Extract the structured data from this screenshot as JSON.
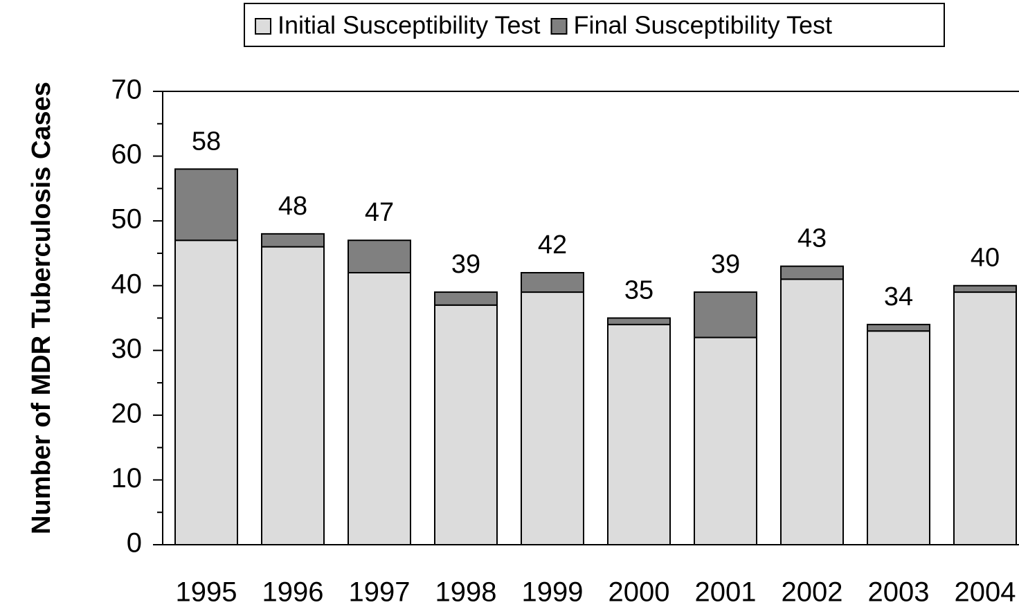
{
  "chart_data": {
    "type": "stacked_bar",
    "y_label": "Number of MDR Tuberculosis Cases",
    "categories": [
      "1995",
      "1996",
      "1997",
      "1998",
      "1999",
      "2000",
      "2001",
      "2002",
      "2003",
      "2004"
    ],
    "series": [
      {
        "name": "Initial Susceptibility Test",
        "color": "#dcdcdc",
        "values": [
          47,
          46,
          42,
          37,
          39,
          34,
          32,
          41,
          33,
          39
        ]
      },
      {
        "name": "Final Susceptibility Test",
        "color": "#808080",
        "values": [
          11,
          2,
          5,
          2,
          3,
          1,
          7,
          2,
          1,
          1
        ]
      }
    ],
    "totals": [
      58,
      48,
      47,
      39,
      42,
      35,
      39,
      43,
      34,
      40
    ],
    "ylim": [
      0,
      70
    ],
    "yticks": [
      0,
      10,
      20,
      30,
      40,
      50,
      60,
      70
    ],
    "legend": "top"
  }
}
